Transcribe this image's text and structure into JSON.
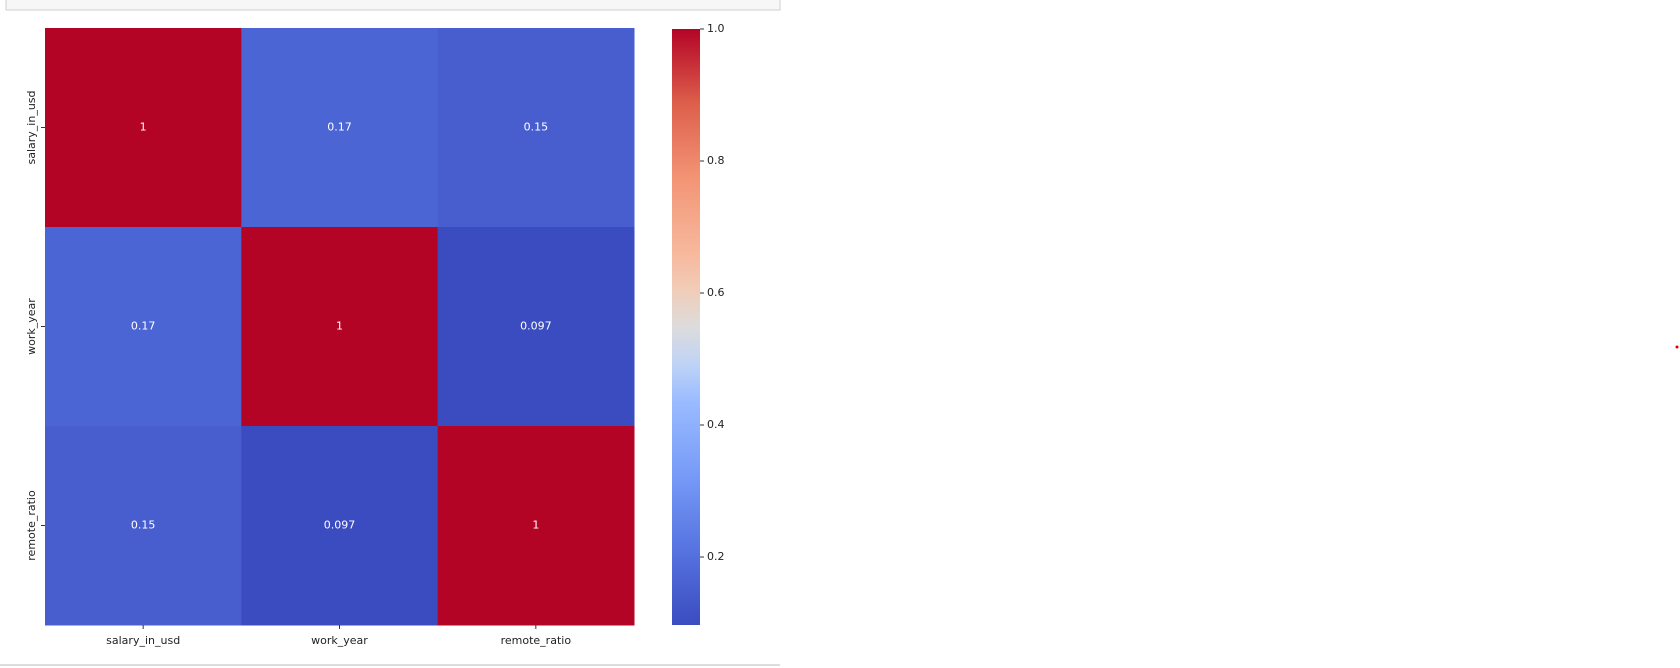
{
  "chart_data": {
    "type": "heatmap",
    "rows": [
      "salary_in_usd",
      "work_year",
      "remote_ratio"
    ],
    "columns": [
      "salary_in_usd",
      "work_year",
      "remote_ratio"
    ],
    "z": [
      [
        1,
        0.17,
        0.15
      ],
      [
        0.17,
        1,
        0.097
      ],
      [
        0.15,
        0.097,
        1
      ]
    ],
    "colormap": "coolwarm",
    "clim": [
      0.097,
      1
    ],
    "cticks": [
      {
        "value": 1,
        "label": "1.0"
      },
      0.8,
      0.6,
      0.4,
      0.2
    ]
  }
}
